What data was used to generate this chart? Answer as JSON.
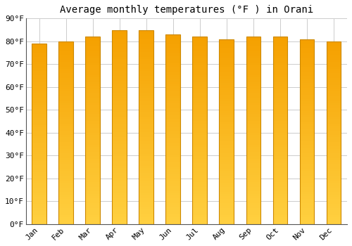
{
  "title": "Average monthly temperatures (°F ) in Orani",
  "months": [
    "Jan",
    "Feb",
    "Mar",
    "Apr",
    "May",
    "Jun",
    "Jul",
    "Aug",
    "Sep",
    "Oct",
    "Nov",
    "Dec"
  ],
  "values": [
    79,
    80,
    82,
    85,
    85,
    83,
    82,
    81,
    82,
    82,
    81,
    80
  ],
  "ylim": [
    0,
    90
  ],
  "yticks": [
    0,
    10,
    20,
    30,
    40,
    50,
    60,
    70,
    80,
    90
  ],
  "ytick_labels": [
    "0°F",
    "10°F",
    "20°F",
    "30°F",
    "40°F",
    "50°F",
    "60°F",
    "70°F",
    "80°F",
    "90°F"
  ],
  "bar_color_bottom": "#FFD040",
  "bar_color_top": "#F5A000",
  "bar_edge_color": "#CC8800",
  "background_color": "#FFFFFF",
  "plot_bg_color": "#FFFFFF",
  "grid_color": "#CCCCCC",
  "title_fontsize": 10,
  "tick_fontsize": 8,
  "font_family": "monospace",
  "bar_width": 0.55
}
